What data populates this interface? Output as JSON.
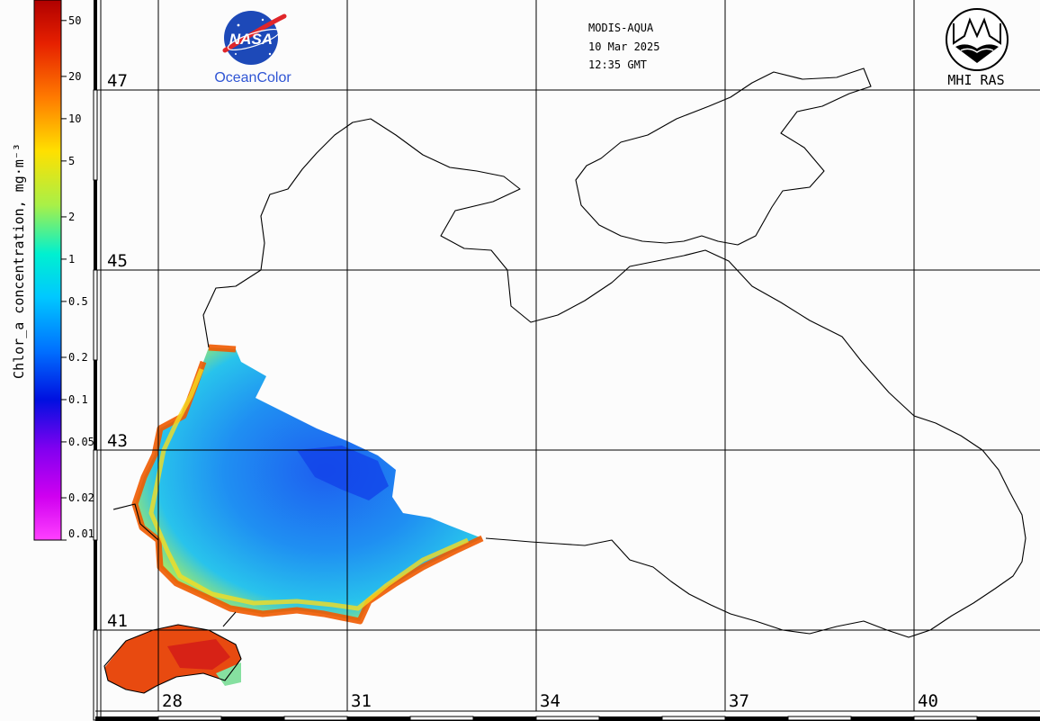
{
  "colorbar": {
    "title": "Chlor_a concentration, mg·m⁻³",
    "ticks": [
      "50",
      "20",
      "10",
      "5",
      "2",
      "1",
      "0.5",
      "0.2",
      "0.1",
      "0.05",
      "0.02",
      "0.01"
    ]
  },
  "latitude_labels": [
    "47",
    "45",
    "43",
    "41"
  ],
  "longitude_labels": [
    "28",
    "31",
    "34",
    "37",
    "40"
  ],
  "header": {
    "sensor": "MODIS-AQUA",
    "date": "10 Mar 2025",
    "time": "12:35 GMT"
  },
  "logos": {
    "nasa_text": "NASA",
    "nasa_caption": "OceanColor",
    "mhi_caption": "MHI RAS"
  },
  "colors": {
    "land_bg": "#fcfcfc",
    "coast": "#000000",
    "grid": "#000000",
    "nasa_blue": "#1d49b8",
    "nasa_red": "#e0262a",
    "caption_blue": "#2f55d4"
  }
}
